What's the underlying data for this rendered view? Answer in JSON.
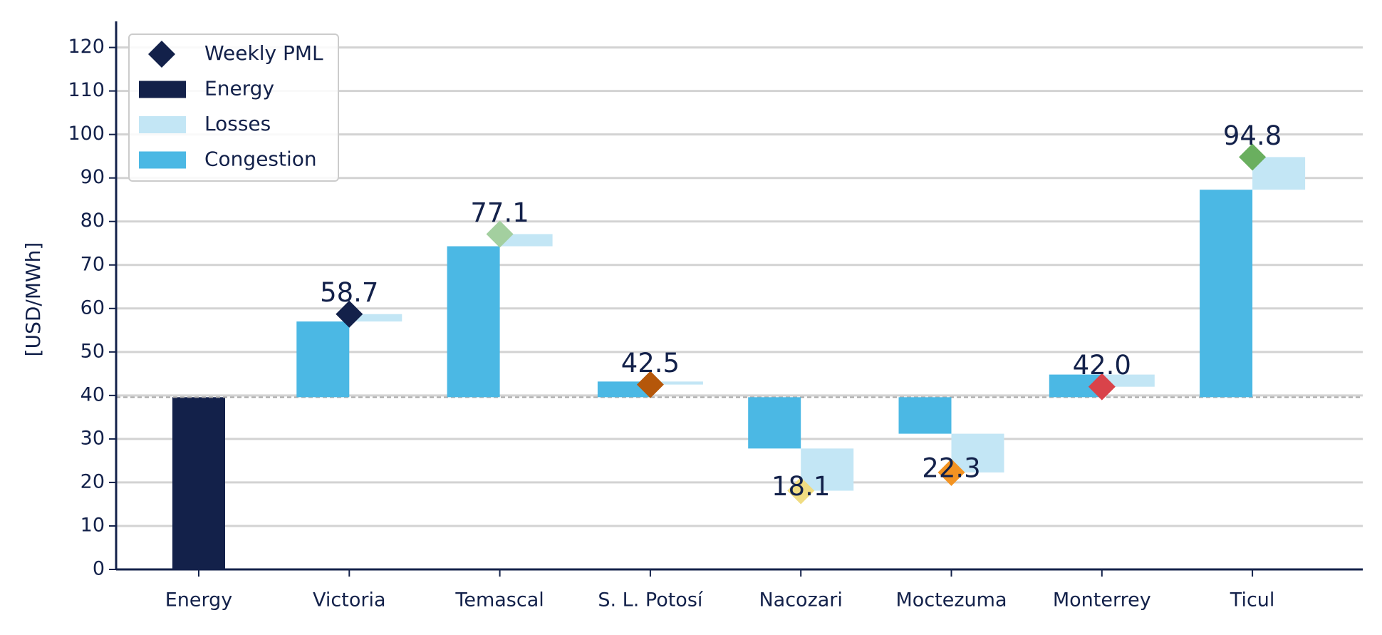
{
  "chart_data": {
    "type": "waterfall",
    "y_label": "[USD/MWh]",
    "categories": [
      "Energy",
      "Victoria",
      "Temascal",
      "S. L. Potosí",
      "Nacozari",
      "Moctezuma",
      "Monterrey",
      "Ticul"
    ],
    "series": [
      {
        "name": "Weekly PML",
        "color": "#13214a",
        "point_colors": [
          null,
          "#13214a",
          "#a3cf9f",
          "#b5570a",
          "#f0dc82",
          "#f39322",
          "#d9434a",
          "#6aaf5f"
        ],
        "values": [
          null,
          58.7,
          77.1,
          42.5,
          18.1,
          22.3,
          42.0,
          94.8
        ],
        "value_labels": [
          null,
          "58.7",
          "77.1",
          "42.5",
          "18.1",
          "22.3",
          "42.0",
          "94.8"
        ]
      },
      {
        "name": "Energy",
        "color": "#13214a",
        "values": [
          39.6,
          null,
          null,
          null,
          null,
          null,
          null,
          null
        ]
      },
      {
        "name": "Losses",
        "color": "#c3e6f5",
        "values": [
          null,
          1.7,
          2.8,
          -0.7,
          -9.7,
          -8.9,
          -2.8,
          7.5
        ]
      },
      {
        "name": "Congestion",
        "color": "#4bb8e4",
        "values": [
          null,
          17.4,
          34.7,
          3.6,
          -11.8,
          -8.4,
          5.2,
          47.7
        ]
      }
    ],
    "ylim": [
      0,
      126
    ],
    "yticks": [
      0,
      10,
      20,
      30,
      40,
      50,
      60,
      70,
      80,
      90,
      100,
      110,
      120
    ],
    "grid": true,
    "legend": "upper left"
  }
}
